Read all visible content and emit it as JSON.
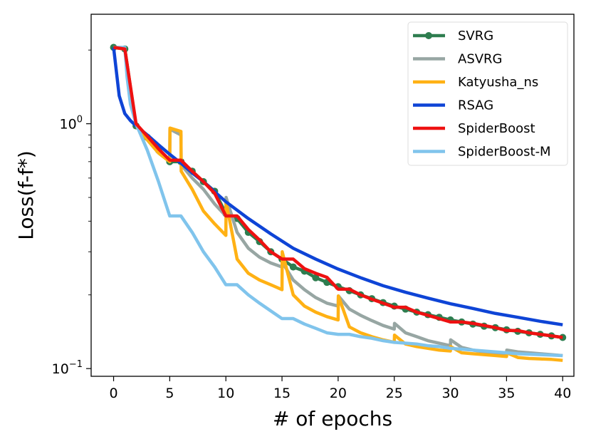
{
  "chart_data": {
    "type": "line",
    "xlabel": "# of epochs",
    "ylabel": "Loss(f-f*)",
    "yscale": "log",
    "xlim": [
      -2,
      41
    ],
    "ylim": [
      0.093,
      2.8
    ],
    "xticks": [
      0,
      5,
      10,
      15,
      20,
      25,
      30,
      35,
      40
    ],
    "xtick_labels": [
      "0",
      "5",
      "10",
      "15",
      "20",
      "25",
      "30",
      "35",
      "40"
    ],
    "yticks": [
      1,
      0.1
    ],
    "ytick_base": "10",
    "ytick_exponents": [
      "0",
      "−1"
    ],
    "legend_position": "top-right",
    "series": [
      {
        "name": "SVRG",
        "color": "#2e7d4f",
        "marker": "circle",
        "x": [
          0,
          1,
          2,
          3,
          4,
          5,
          6,
          7,
          8,
          9,
          10,
          11,
          12,
          13,
          14,
          15,
          16,
          17,
          18,
          19,
          20,
          21,
          22,
          23,
          24,
          25,
          26,
          27,
          28,
          29,
          30,
          31,
          32,
          33,
          34,
          35,
          36,
          37,
          38,
          39,
          40
        ],
        "y": [
          2.05,
          2.02,
          0.98,
          0.88,
          0.78,
          0.7,
          0.7,
          0.64,
          0.58,
          0.53,
          0.43,
          0.41,
          0.36,
          0.33,
          0.3,
          0.28,
          0.26,
          0.25,
          0.235,
          0.225,
          0.216,
          0.208,
          0.2,
          0.193,
          0.186,
          0.18,
          0.175,
          0.17,
          0.166,
          0.162,
          0.158,
          0.155,
          0.152,
          0.149,
          0.147,
          0.144,
          0.142,
          0.14,
          0.138,
          0.136,
          0.134
        ]
      },
      {
        "name": "ASVRG",
        "color": "#97a6a3",
        "marker": "",
        "x": [
          0,
          1,
          2,
          3,
          4,
          5,
          5.02,
          6,
          6.02,
          7,
          8,
          9,
          10,
          10.02,
          11,
          12,
          13,
          14,
          15,
          15.02,
          16,
          17,
          18,
          19,
          20,
          20.02,
          21,
          22,
          23,
          24,
          25,
          25.02,
          26,
          27,
          28,
          29,
          30,
          30.02,
          31,
          32,
          33,
          34,
          35,
          35.02,
          36,
          37,
          38,
          39,
          40
        ],
        "y": [
          2.05,
          2.02,
          0.98,
          0.86,
          0.76,
          0.7,
          0.95,
          0.9,
          0.68,
          0.6,
          0.54,
          0.47,
          0.42,
          0.5,
          0.36,
          0.31,
          0.285,
          0.27,
          0.26,
          0.272,
          0.23,
          0.21,
          0.195,
          0.185,
          0.18,
          0.198,
          0.175,
          0.165,
          0.157,
          0.15,
          0.145,
          0.153,
          0.14,
          0.135,
          0.13,
          0.127,
          0.124,
          0.131,
          0.122,
          0.119,
          0.117,
          0.116,
          0.115,
          0.119,
          0.117,
          0.116,
          0.115,
          0.114,
          0.113
        ]
      },
      {
        "name": "Katyusha_ns",
        "color": "#ffb114",
        "marker": "",
        "x": [
          0,
          1,
          2,
          3,
          4,
          5,
          5.02,
          6,
          6.02,
          7,
          8,
          9,
          10,
          10.02,
          11,
          12,
          13,
          14,
          15,
          15.02,
          16,
          17,
          18,
          19,
          20,
          20.02,
          21,
          22,
          23,
          24,
          25,
          25.02,
          26,
          27,
          28,
          29,
          30,
          30.02,
          31,
          32,
          33,
          34,
          35,
          35.02,
          36,
          37,
          38,
          39,
          40
        ],
        "y": [
          2.05,
          2.02,
          0.98,
          0.86,
          0.76,
          0.7,
          0.96,
          0.93,
          0.64,
          0.54,
          0.44,
          0.39,
          0.35,
          0.48,
          0.28,
          0.245,
          0.23,
          0.22,
          0.21,
          0.3,
          0.2,
          0.18,
          0.17,
          0.163,
          0.158,
          0.198,
          0.148,
          0.14,
          0.135,
          0.131,
          0.128,
          0.137,
          0.126,
          0.123,
          0.121,
          0.119,
          0.118,
          0.123,
          0.116,
          0.115,
          0.114,
          0.113,
          0.112,
          0.116,
          0.111,
          0.11,
          0.1095,
          0.109,
          0.108
        ]
      },
      {
        "name": "RSAG",
        "color": "#0e44d6",
        "marker": "",
        "x": [
          0,
          0.5,
          1,
          1.5,
          2,
          3,
          4,
          5,
          6,
          7,
          8,
          10,
          12,
          14,
          16,
          18,
          20,
          22,
          24,
          26,
          28,
          30,
          32,
          34,
          36,
          38,
          40
        ],
        "y": [
          2.05,
          1.3,
          1.1,
          1.03,
          0.98,
          0.9,
          0.82,
          0.75,
          0.69,
          0.63,
          0.58,
          0.48,
          0.41,
          0.355,
          0.31,
          0.28,
          0.255,
          0.235,
          0.218,
          0.205,
          0.194,
          0.184,
          0.176,
          0.168,
          0.162,
          0.156,
          0.151
        ]
      },
      {
        "name": "SpiderBoost",
        "color": "#ee1111",
        "marker": "",
        "x": [
          0,
          1,
          2,
          3,
          4,
          5,
          6,
          7,
          8,
          9,
          10,
          11,
          12,
          13,
          14,
          15,
          16,
          17,
          18,
          19,
          20,
          21,
          22,
          23,
          24,
          25,
          26,
          27,
          28,
          29,
          30,
          31,
          32,
          33,
          34,
          35,
          36,
          37,
          38,
          39,
          40
        ],
        "y": [
          2.05,
          2.02,
          1.0,
          0.89,
          0.79,
          0.71,
          0.71,
          0.64,
          0.58,
          0.52,
          0.42,
          0.42,
          0.37,
          0.335,
          0.3,
          0.28,
          0.28,
          0.256,
          0.245,
          0.236,
          0.211,
          0.211,
          0.2,
          0.192,
          0.185,
          0.178,
          0.178,
          0.17,
          0.165,
          0.16,
          0.155,
          0.155,
          0.153,
          0.15,
          0.147,
          0.143,
          0.143,
          0.14,
          0.138,
          0.136,
          0.134
        ]
      },
      {
        "name": "SpiderBoost-M",
        "color": "#80c4ec",
        "marker": "",
        "x": [
          0,
          1,
          1.2,
          1.5,
          2,
          3,
          4,
          5,
          6,
          7,
          8,
          9,
          10,
          11,
          12,
          13,
          14,
          15,
          16,
          17,
          18,
          19,
          20,
          21,
          22,
          23,
          24,
          25,
          26,
          27,
          28,
          29,
          30,
          31,
          32,
          33,
          34,
          35,
          36,
          37,
          38,
          39,
          40
        ],
        "y": [
          2.05,
          2.05,
          1.55,
          1.2,
          1.0,
          0.78,
          0.58,
          0.42,
          0.42,
          0.36,
          0.3,
          0.26,
          0.22,
          0.22,
          0.2,
          0.185,
          0.172,
          0.16,
          0.16,
          0.152,
          0.146,
          0.14,
          0.138,
          0.138,
          0.135,
          0.133,
          0.13,
          0.128,
          0.127,
          0.126,
          0.124,
          0.123,
          0.121,
          0.12,
          0.119,
          0.118,
          0.117,
          0.116,
          0.115,
          0.1145,
          0.114,
          0.1135,
          0.113
        ]
      }
    ]
  }
}
